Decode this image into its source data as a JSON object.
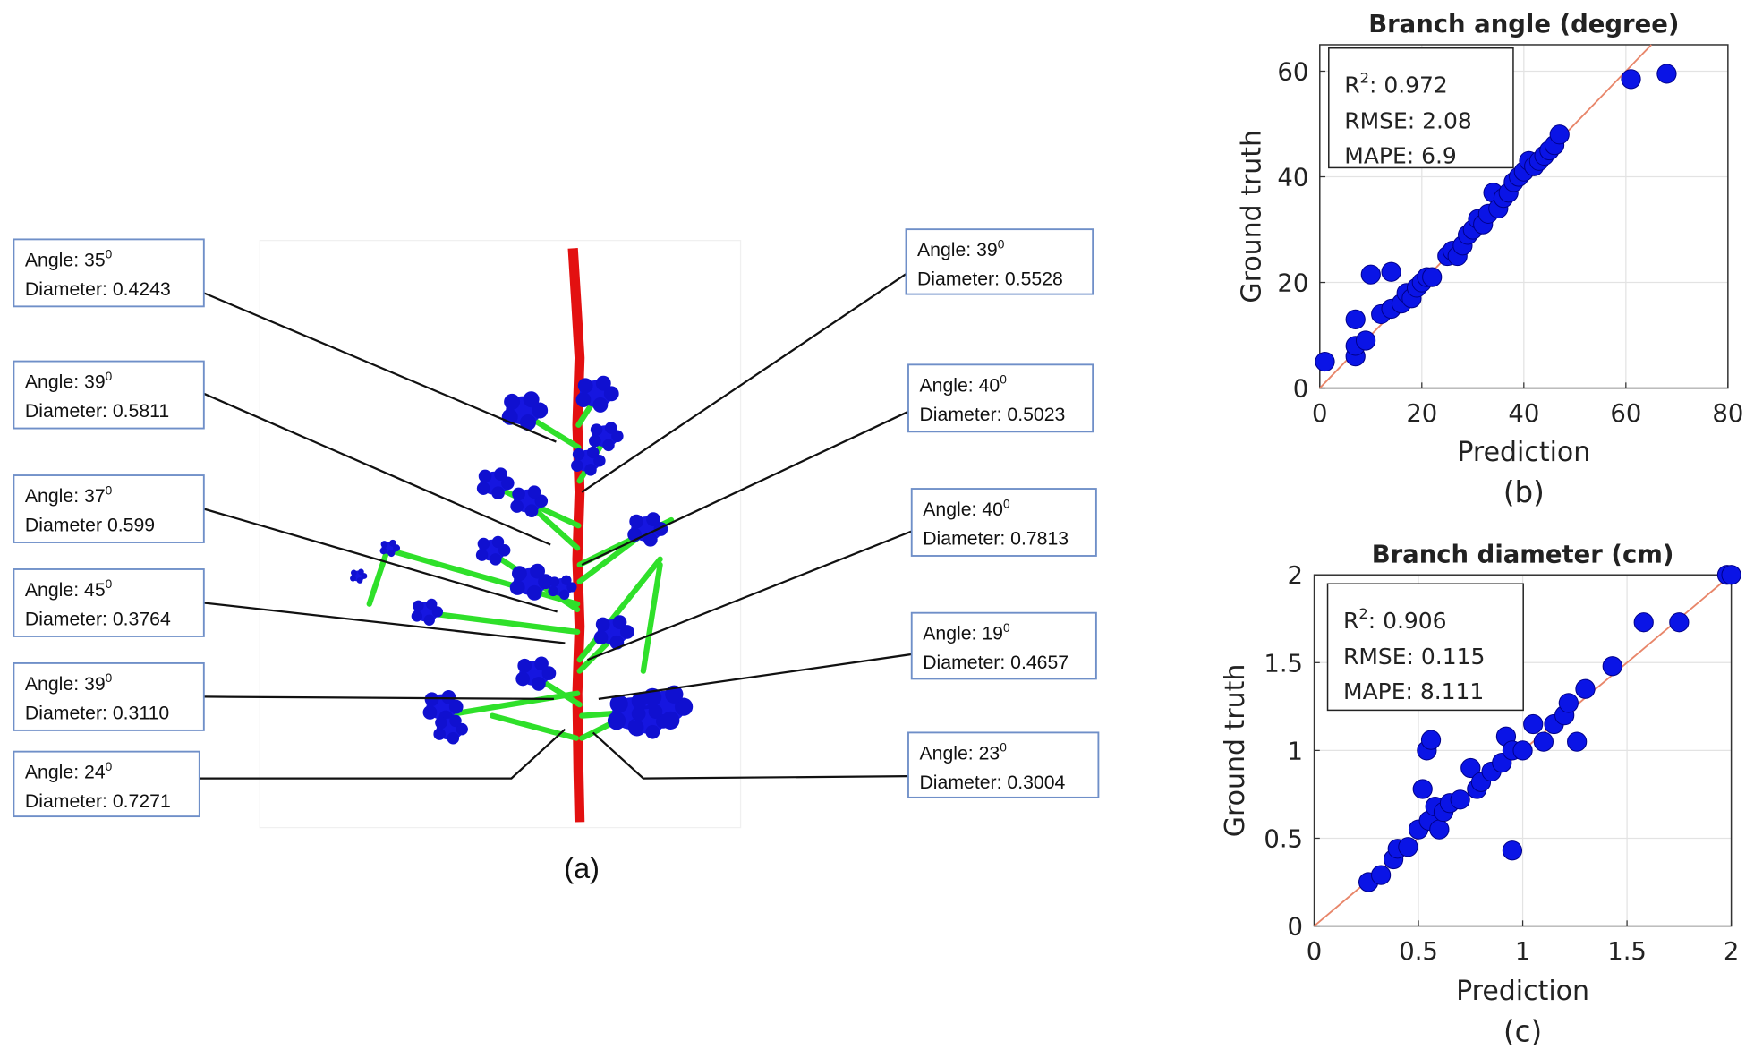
{
  "panel_a": {
    "caption": "(a)",
    "labels": [
      {
        "angle": "Angle: 35",
        "sup": "0",
        "diameter": "Diameter: 0.4243"
      },
      {
        "angle": "Angle: 39",
        "sup": "0",
        "diameter": "Diameter: 0.5811"
      },
      {
        "angle": "Angle: 37",
        "sup": "0",
        "diameter": "Diameter 0.599"
      },
      {
        "angle": "Angle: 45",
        "sup": "0",
        "diameter": "Diameter: 0.3764"
      },
      {
        "angle": "Angle: 39",
        "sup": "0",
        "diameter": "Diameter: 0.3110"
      },
      {
        "angle": "Angle: 24",
        "sup": "0",
        "diameter": "Diameter: 0.7271"
      },
      {
        "angle": "Angle: 39",
        "sup": "0",
        "diameter": "Diameter: 0.5528"
      },
      {
        "angle": "Angle: 40",
        "sup": "0",
        "diameter": "Diameter: 0.5023"
      },
      {
        "angle": "Angle: 40",
        "sup": "0",
        "diameter": "Diameter: 0.7813"
      },
      {
        "angle": "Angle: 19",
        "sup": "0",
        "diameter": "Diameter: 0.4657"
      },
      {
        "angle": "Angle: 23",
        "sup": "0",
        "diameter": "Diameter:  0.3004"
      }
    ]
  },
  "chart_data": [
    {
      "type": "scatter",
      "title": "Branch angle (degree)",
      "caption": "(b)",
      "x_label": "Prediction",
      "y_label": "Ground truth",
      "stats": {
        "r2": {
          "label": "R",
          "sup": "2",
          "text": ": 0.972"
        },
        "lines": [
          "RMSE: 2.08",
          "MAPE: 6.9"
        ]
      },
      "x": [
        1,
        7,
        7,
        7,
        9,
        10,
        14,
        12,
        14,
        16,
        17,
        18,
        19,
        20,
        21,
        22,
        25,
        26,
        27,
        28,
        29,
        30,
        31,
        32,
        33,
        34,
        35,
        36,
        37,
        38,
        39,
        40,
        41,
        42,
        43,
        44,
        45,
        46,
        47,
        61,
        68
      ],
      "values": [
        5,
        6,
        8,
        13,
        9,
        21.5,
        22,
        14,
        15,
        16,
        18,
        17,
        19,
        20,
        21,
        21,
        25,
        26,
        25,
        27,
        29,
        30,
        32,
        31,
        33,
        37,
        34,
        36,
        37,
        39,
        40,
        41,
        43,
        42,
        43,
        44,
        45,
        46,
        48,
        58.5,
        59.5
      ],
      "color": "#0a14e6",
      "fit_color": "#e8866a",
      "xlim": [
        0,
        80
      ],
      "ylim": [
        0,
        65
      ],
      "xticks": [
        0,
        20,
        40,
        60,
        80
      ],
      "yticks": [
        0,
        20,
        40,
        60
      ],
      "grid": true
    },
    {
      "type": "scatter",
      "title": "Branch diameter (cm)",
      "caption": "(c)",
      "x_label": "Prediction",
      "y_label": "Ground truth",
      "stats": {
        "r2": {
          "label": "R",
          "sup": "2",
          "text": ": 0.906"
        },
        "lines": [
          "RMSE: 0.115",
          "MAPE: 8.111"
        ]
      },
      "x": [
        0.26,
        0.32,
        0.38,
        0.4,
        0.45,
        0.5,
        0.52,
        0.54,
        0.56,
        0.55,
        0.58,
        0.6,
        0.62,
        0.65,
        0.7,
        0.75,
        0.78,
        0.8,
        0.85,
        0.9,
        0.92,
        0.95,
        0.95,
        1.0,
        1.05,
        1.1,
        1.15,
        1.2,
        1.22,
        1.26,
        1.3,
        1.43,
        1.58,
        1.75,
        1.98,
        2.0
      ],
      "values": [
        0.25,
        0.29,
        0.38,
        0.44,
        0.45,
        0.55,
        0.78,
        1.0,
        1.06,
        0.6,
        0.68,
        0.55,
        0.65,
        0.7,
        0.72,
        0.9,
        0.78,
        0.82,
        0.88,
        0.93,
        1.08,
        0.43,
        1.0,
        1.0,
        1.15,
        1.05,
        1.15,
        1.2,
        1.27,
        1.05,
        1.35,
        1.48,
        1.73,
        1.73,
        2.0,
        2.0
      ],
      "color": "#0a14e6",
      "fit_color": "#e8866a",
      "xlim": [
        0,
        2
      ],
      "ylim": [
        0,
        2
      ],
      "xticks": [
        0,
        0.5,
        1,
        1.5,
        2
      ],
      "yticks": [
        0,
        0.5,
        1,
        1.5,
        2
      ],
      "grid": true
    }
  ]
}
